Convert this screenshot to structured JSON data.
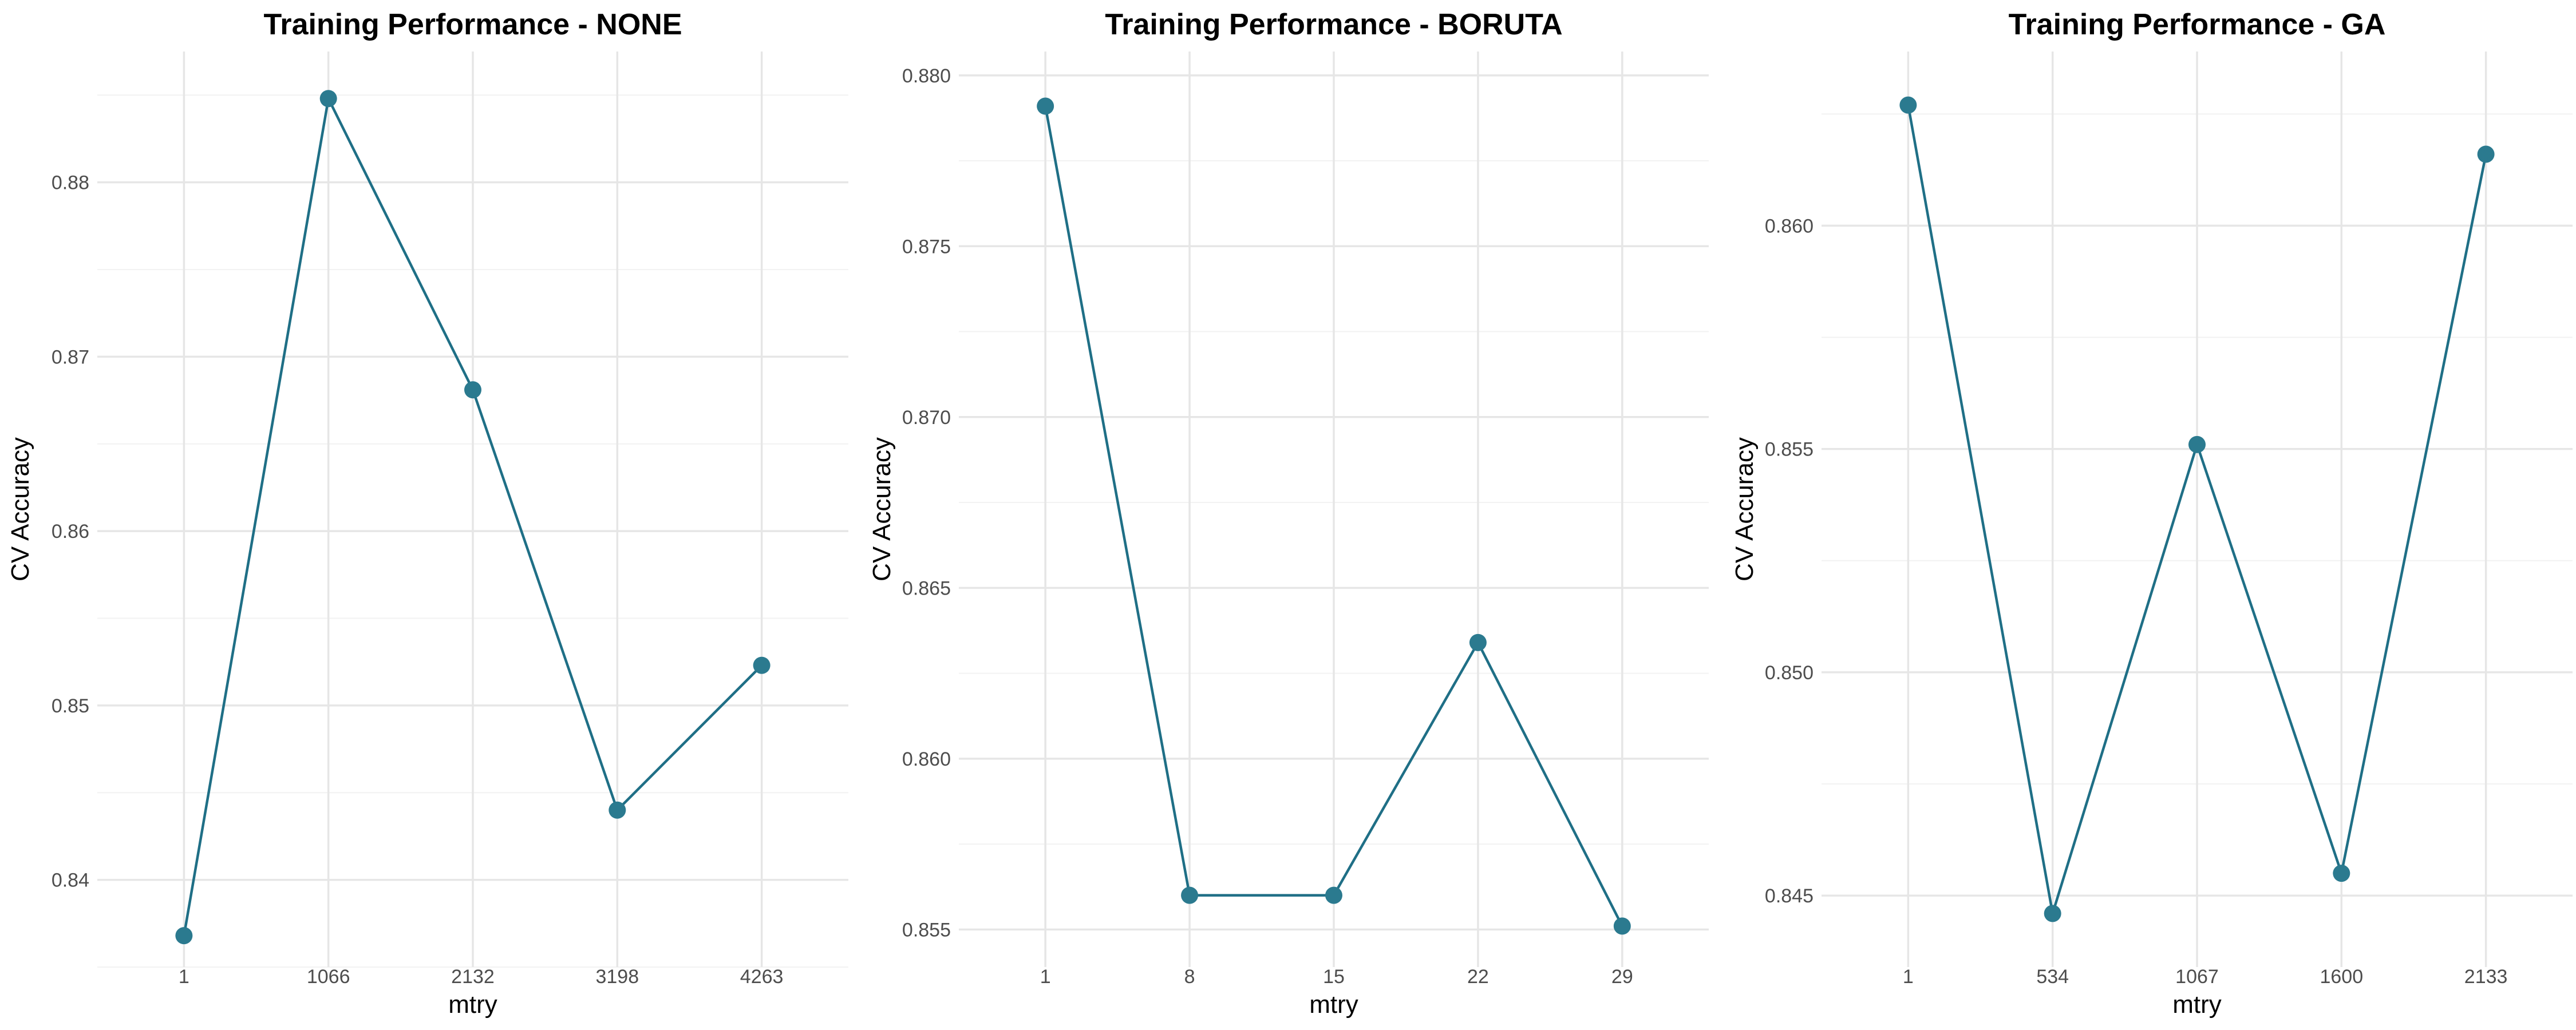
{
  "chart_data": [
    {
      "type": "line",
      "title": "Training Performance - NONE",
      "xlabel": "mtry",
      "ylabel": "CV Accuracy",
      "categories": [
        "1",
        "1066",
        "2132",
        "3198",
        "4263"
      ],
      "values": [
        0.8368,
        0.8848,
        0.8681,
        0.844,
        0.8523
      ],
      "yticks": [
        "0.84",
        "0.85",
        "0.86",
        "0.87",
        "0.88"
      ],
      "ylim": [
        0.835,
        0.8875
      ],
      "grid": true,
      "color": "#1f6f86",
      "marker_color": "#2b7a8f"
    },
    {
      "type": "line",
      "title": "Training Performance - BORUTA",
      "xlabel": "mtry",
      "ylabel": "CV Accuracy",
      "categories": [
        "1",
        "8",
        "15",
        "22",
        "29"
      ],
      "values": [
        0.8791,
        0.856,
        0.856,
        0.8634,
        0.8551
      ],
      "yticks": [
        "0.855",
        "0.860",
        "0.865",
        "0.870",
        "0.875",
        "0.880"
      ],
      "ylim": [
        0.8539,
        0.8807
      ],
      "grid": true,
      "color": "#1f6f86",
      "marker_color": "#2b7a8f"
    },
    {
      "type": "line",
      "title": "Training Performance - GA",
      "xlabel": "mtry",
      "ylabel": "CV Accuracy",
      "categories": [
        "1",
        "534",
        "1067",
        "1600",
        "2133"
      ],
      "values": [
        0.8627,
        0.8446,
        0.8551,
        0.8455,
        0.8616
      ],
      "yticks": [
        "0.845",
        "0.850",
        "0.855",
        "0.860"
      ],
      "ylim": [
        0.8434,
        0.8639
      ],
      "grid": true,
      "color": "#1f6f86",
      "marker_color": "#2b7a8f"
    }
  ]
}
